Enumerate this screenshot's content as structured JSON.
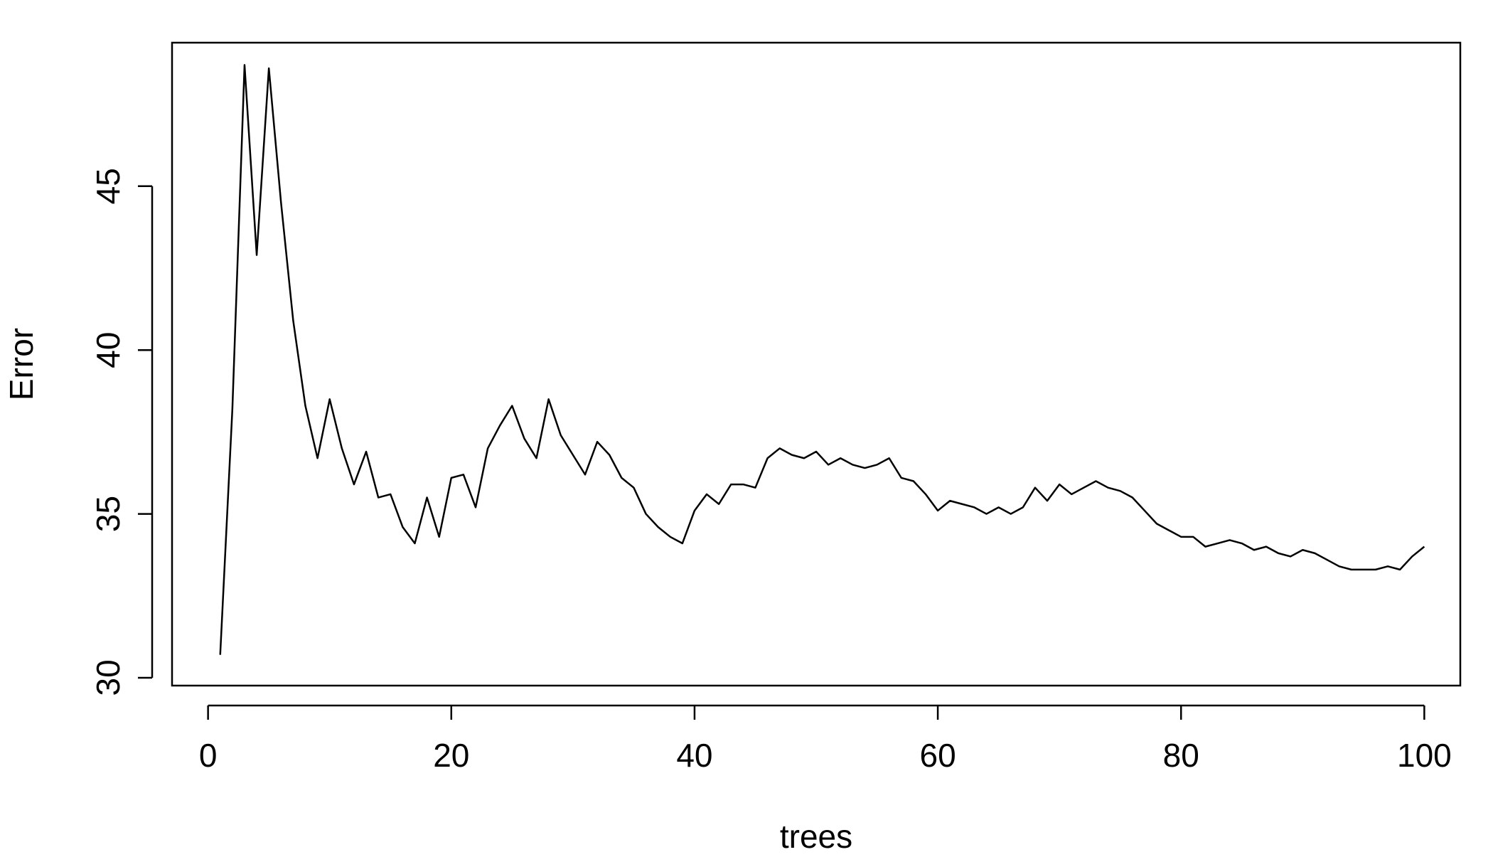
{
  "chart_data": {
    "type": "line",
    "title": "",
    "xlabel": "trees",
    "ylabel": "Error",
    "xlim": [
      -2.96,
      102.96
    ],
    "ylim": [
      29.76,
      49.38
    ],
    "xticks": [
      0,
      20,
      40,
      60,
      80,
      100
    ],
    "yticks": [
      30,
      35,
      40,
      45
    ],
    "xtick_labels": [
      "0",
      "20",
      "40",
      "60",
      "80",
      "100"
    ],
    "ytick_labels": [
      "30",
      "35",
      "40",
      "45"
    ],
    "grid": false,
    "legend": "none",
    "line_color": "#000000",
    "series": [
      {
        "x": [
          1,
          2,
          3,
          4,
          5,
          6,
          7,
          8,
          9,
          10,
          11,
          12,
          13,
          14,
          15,
          16,
          17,
          18,
          19,
          20,
          21,
          22,
          23,
          24,
          25,
          26,
          27,
          28,
          29,
          30,
          31,
          32,
          33,
          34,
          35,
          36,
          37,
          38,
          39,
          40,
          41,
          42,
          43,
          44,
          45,
          46,
          47,
          48,
          49,
          50,
          51,
          52,
          53,
          54,
          55,
          56,
          57,
          58,
          59,
          60,
          61,
          62,
          63,
          64,
          65,
          66,
          67,
          68,
          69,
          70,
          71,
          72,
          73,
          74,
          75,
          76,
          77,
          78,
          79,
          80,
          81,
          82,
          83,
          84,
          85,
          86,
          87,
          88,
          89,
          90,
          91,
          92,
          93,
          94,
          95,
          96,
          97,
          98,
          99,
          100
        ],
        "values": [
          30.7,
          38.2,
          48.7,
          42.9,
          48.6,
          44.5,
          40.9,
          38.3,
          36.7,
          38.5,
          37.0,
          35.9,
          36.9,
          35.5,
          35.6,
          34.6,
          34.1,
          35.5,
          34.3,
          36.1,
          36.2,
          35.2,
          37.0,
          37.7,
          38.3,
          37.3,
          36.7,
          38.5,
          37.4,
          36.8,
          36.2,
          37.2,
          36.8,
          36.1,
          35.8,
          35.0,
          34.6,
          34.3,
          34.1,
          35.1,
          35.6,
          35.3,
          35.9,
          35.9,
          35.8,
          36.7,
          37.0,
          36.8,
          36.7,
          36.9,
          36.5,
          36.7,
          36.5,
          36.4,
          36.5,
          36.7,
          36.1,
          36.0,
          35.6,
          35.1,
          35.4,
          35.3,
          35.2,
          35.0,
          35.2,
          35.0,
          35.2,
          35.8,
          35.4,
          35.9,
          35.6,
          35.8,
          36.0,
          35.8,
          35.7,
          35.5,
          35.1,
          34.7,
          34.5,
          34.3,
          34.3,
          34.0,
          34.1,
          34.2,
          34.1,
          33.9,
          34.0,
          33.8,
          33.7,
          33.9,
          33.8,
          33.6,
          33.4,
          33.3,
          33.3,
          33.3,
          33.4,
          33.3,
          33.7,
          34.0
        ]
      }
    ]
  }
}
